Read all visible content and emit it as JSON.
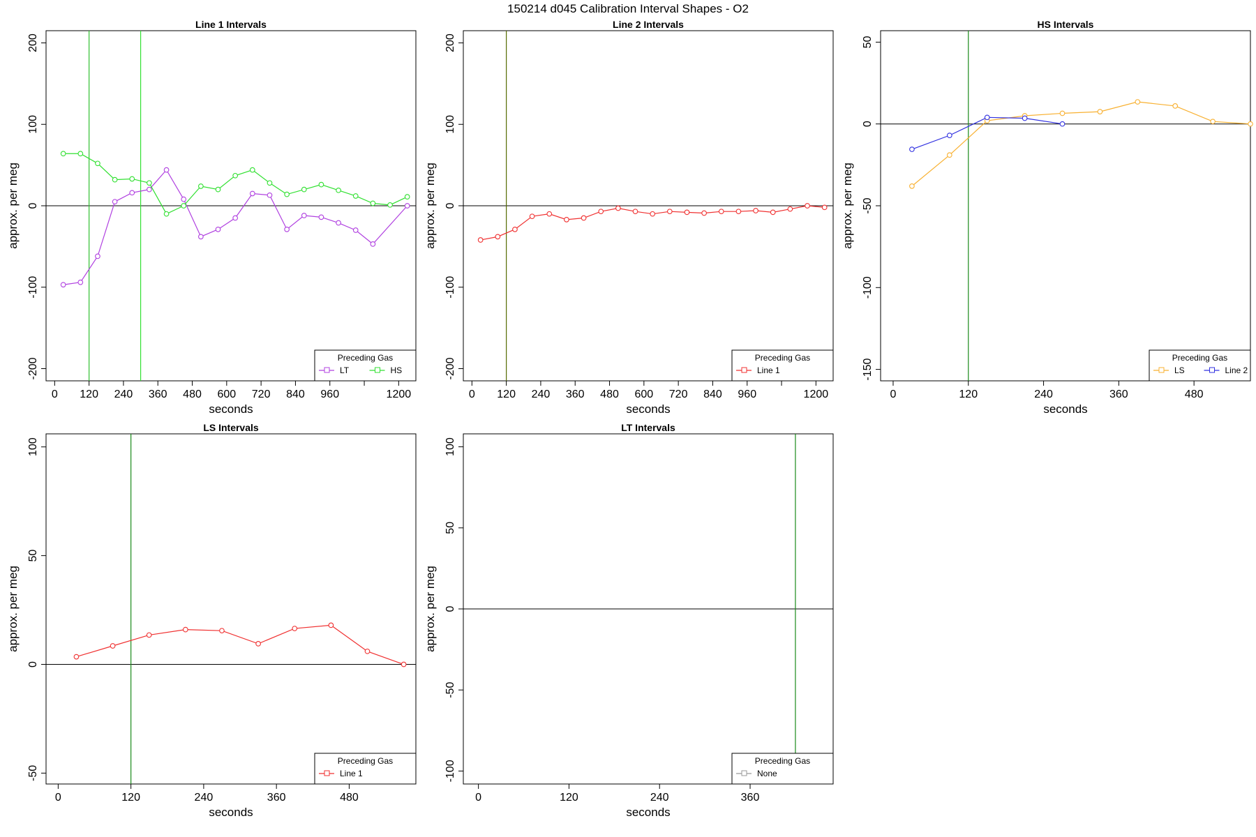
{
  "figure_title": "150214   d045   Calibration Interval Shapes - O2",
  "colors": {
    "LT": "#b040e0",
    "HS": "#30e030",
    "Line 1": "#f03030",
    "LS": "#f8b030",
    "Line 2": "#3030e0",
    "None": "#999999",
    "vline": "#1a8a1a",
    "vline_bright": "#40d040",
    "axis": "#000000"
  },
  "chart_data": [
    {
      "type": "line",
      "title": "Line 1 Intervals",
      "xlabel": "seconds",
      "ylabel": "approx. per meg",
      "xlim": [
        -30,
        1260
      ],
      "ylim": [
        -215,
        215
      ],
      "xticks": [
        0,
        120,
        240,
        360,
        480,
        600,
        720,
        840,
        960,
        1080,
        1200
      ],
      "xtick_labels": [
        "0",
        "120",
        "240",
        "360",
        "480",
        "600",
        "720",
        "840",
        "960",
        "",
        "1200"
      ],
      "yticks": [
        -200,
        -100,
        0,
        100,
        200
      ],
      "ytick_labels": [
        "-200",
        "-100",
        "0",
        "100",
        "200"
      ],
      "hline": 0,
      "vlines": [
        {
          "x": 120,
          "color": "#30c030"
        },
        {
          "x": 300,
          "color": "#30e030"
        }
      ],
      "legend": {
        "title": "Preceding Gas",
        "position": "bottom-right",
        "entries": [
          "LT",
          "HS"
        ]
      },
      "series": [
        {
          "name": "LT",
          "color": "#b040e0",
          "x": [
            30,
            90,
            150,
            210,
            270,
            330,
            390,
            450,
            510,
            570,
            630,
            690,
            750,
            810,
            870,
            930,
            990,
            1050,
            1110,
            1230
          ],
          "y": [
            -97,
            -94,
            -62,
            5,
            16,
            20,
            44,
            8,
            -38,
            -29,
            -15,
            15,
            13,
            -29,
            -12,
            -14,
            -21,
            -30,
            -47,
            0
          ]
        },
        {
          "name": "HS",
          "color": "#30e030",
          "x": [
            30,
            90,
            150,
            210,
            270,
            330,
            390,
            450,
            510,
            570,
            630,
            690,
            750,
            810,
            870,
            930,
            990,
            1050,
            1110,
            1170,
            1230
          ],
          "y": [
            64,
            64,
            52,
            32,
            33,
            28,
            -10,
            0,
            24,
            20,
            37,
            44,
            28,
            14,
            20,
            26,
            19,
            12,
            3,
            1,
            11
          ]
        }
      ]
    },
    {
      "type": "line",
      "title": "Line 2 Intervals",
      "xlabel": "seconds",
      "ylabel": "approx. per meg",
      "xlim": [
        -30,
        1260
      ],
      "ylim": [
        -215,
        215
      ],
      "xticks": [
        0,
        120,
        240,
        360,
        480,
        600,
        720,
        840,
        960,
        1080,
        1200
      ],
      "xtick_labels": [
        "0",
        "120",
        "240",
        "360",
        "480",
        "600",
        "720",
        "840",
        "960",
        "",
        "1200"
      ],
      "yticks": [
        -200,
        -100,
        0,
        100,
        200
      ],
      "ytick_labels": [
        "-200",
        "-100",
        "0",
        "100",
        "200"
      ],
      "hline": 0,
      "vlines": [
        {
          "x": 120,
          "color": "#556b00"
        }
      ],
      "legend": {
        "title": "Preceding Gas",
        "position": "bottom-right",
        "entries": [
          "Line 1"
        ]
      },
      "series": [
        {
          "name": "Line 1",
          "color": "#f03030",
          "x": [
            30,
            90,
            150,
            210,
            270,
            330,
            390,
            450,
            510,
            570,
            630,
            690,
            750,
            810,
            870,
            930,
            990,
            1050,
            1110,
            1170,
            1230
          ],
          "y": [
            -42,
            -38,
            -29,
            -13,
            -10,
            -17,
            -15,
            -7,
            -3,
            -7,
            -10,
            -7,
            -8,
            -9,
            -7,
            -7,
            -6,
            -8,
            -4,
            0,
            -2
          ]
        }
      ]
    },
    {
      "type": "line",
      "title": "HS Intervals",
      "xlabel": "seconds",
      "ylabel": "approx. per meg",
      "xlim": [
        -20,
        570
      ],
      "ylim": [
        -157,
        57
      ],
      "xticks": [
        0,
        120,
        240,
        360,
        480
      ],
      "xtick_labels": [
        "0",
        "120",
        "240",
        "360",
        "480"
      ],
      "yticks": [
        -150,
        -100,
        -50,
        0,
        50
      ],
      "ytick_labels": [
        "-150",
        "-100",
        "-50",
        "0",
        "50"
      ],
      "hline": 0,
      "vlines": [
        {
          "x": 120,
          "color": "#1a8a1a"
        }
      ],
      "legend": {
        "title": "Preceding Gas",
        "position": "bottom-right",
        "entries": [
          "LS",
          "Line 2"
        ]
      },
      "series": [
        {
          "name": "LS",
          "color": "#f8b030",
          "x": [
            30,
            90,
            150,
            210,
            270,
            330,
            390,
            450,
            510,
            570
          ],
          "y": [
            -38,
            -19,
            2,
            5,
            6.5,
            7.5,
            13.5,
            11,
            1.5,
            0
          ]
        },
        {
          "name": "Line 2",
          "color": "#3030e0",
          "x": [
            30,
            90,
            150,
            210,
            270
          ],
          "y": [
            -15.5,
            -7,
            4,
            3.5,
            0
          ]
        }
      ]
    },
    {
      "type": "line",
      "title": "LS Intervals",
      "xlabel": "seconds",
      "ylabel": "approx. per meg",
      "xlim": [
        -20,
        590
      ],
      "ylim": [
        -55,
        106
      ],
      "xticks": [
        0,
        120,
        240,
        360,
        480
      ],
      "xtick_labels": [
        "0",
        "120",
        "240",
        "360",
        "480"
      ],
      "yticks": [
        -50,
        0,
        50,
        100
      ],
      "ytick_labels": [
        "-50",
        "0",
        "50",
        "100"
      ],
      "hline": 0,
      "vlines": [
        {
          "x": 120,
          "color": "#1a8a1a"
        }
      ],
      "legend": {
        "title": "Preceding Gas",
        "position": "bottom-right",
        "entries": [
          "Line 1"
        ]
      },
      "series": [
        {
          "name": "Line 1",
          "color": "#f03030",
          "x": [
            30,
            90,
            150,
            210,
            270,
            330,
            390,
            450,
            510,
            570
          ],
          "y": [
            3.5,
            8.5,
            13.5,
            16,
            15.5,
            9.5,
            16.5,
            18,
            6,
            0
          ]
        }
      ]
    },
    {
      "type": "line",
      "title": "LT Intervals",
      "xlabel": "seconds",
      "ylabel": "approx. per meg",
      "xlim": [
        -20,
        470
      ],
      "ylim": [
        -108,
        108
      ],
      "xticks": [
        0,
        120,
        240,
        360
      ],
      "xtick_labels": [
        "0",
        "120",
        "240",
        "360"
      ],
      "yticks": [
        -100,
        -50,
        0,
        50,
        100
      ],
      "ytick_labels": [
        "-100",
        "-50",
        "0",
        "50",
        "100"
      ],
      "hline": 0,
      "vlines": [
        {
          "x": 420,
          "color": "#1a8a1a"
        }
      ],
      "legend": {
        "title": "Preceding Gas",
        "position": "bottom-right",
        "entries": [
          "None"
        ]
      },
      "series": [
        {
          "name": "None",
          "color": "#999999",
          "x": [],
          "y": []
        }
      ]
    }
  ]
}
